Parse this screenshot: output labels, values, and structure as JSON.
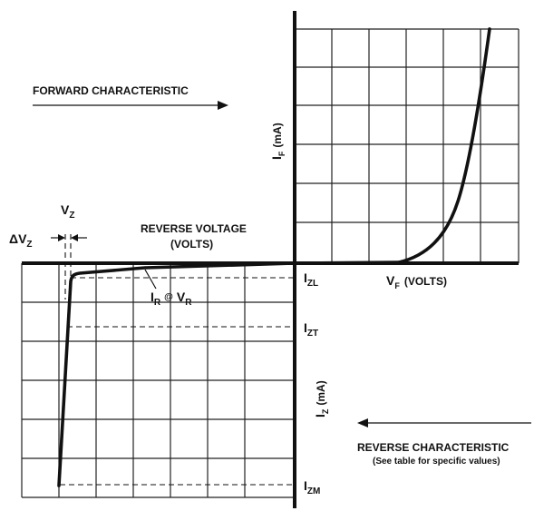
{
  "labels": {
    "forward_title": "FORWARD CHARACTERISTIC",
    "reverse_voltage": "REVERSE VOLTAGE",
    "volts_paren": "(VOLTS)",
    "if_main": "I",
    "if_sub": "F",
    "if_unit": "(mA)",
    "vf_main": "V",
    "vf_sub": "F",
    "vf_unit": "(VOLTS)",
    "izl_main": "I",
    "izl_sub": "ZL",
    "izt_main": "I",
    "izt_sub": "ZT",
    "izm_main": "I",
    "izm_sub": "ZM",
    "iz_main": "I",
    "iz_sub": "Z",
    "iz_unit": "(mA)",
    "vz_main": "V",
    "vz_sub": "Z",
    "dvz_main": "ΔV",
    "dvz_sub": "Z",
    "ir_main": "I",
    "ir_sub": "R",
    "ir_at": "@",
    "vr_main": "V",
    "vr_sub": "R",
    "reverse_title": "REVERSE CHARACTERISTIC",
    "reverse_note": "(See table for specific values)"
  }
}
